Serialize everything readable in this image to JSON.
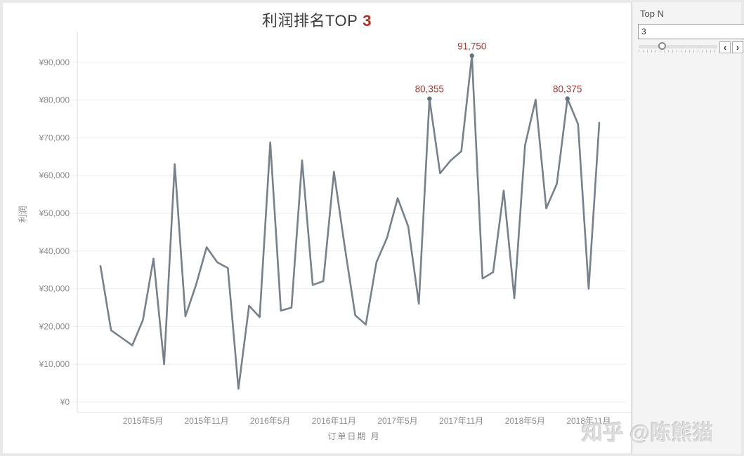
{
  "title": {
    "text": "利润排名TOP",
    "highlight": "3"
  },
  "watermark": "知乎 @陈熊猫",
  "parameter_panel": {
    "label": "Top N",
    "input_value": "3",
    "icons": {
      "chevron_left": "‹",
      "chevron_right": "›"
    }
  },
  "chart_data": {
    "type": "line",
    "title": "利润排名TOP 3",
    "xlabel": "订单日期 月",
    "ylabel": "利润",
    "grid": "horizontal",
    "legend": "none",
    "line_color": "#76818b",
    "dot_color": "#66727c",
    "annotation_color": "#9e3a37",
    "ylim": [
      0,
      95000
    ],
    "x": [
      "2015年1月",
      "2015年2月",
      "2015年3月",
      "2015年4月",
      "2015年5月",
      "2015年6月",
      "2015年7月",
      "2015年8月",
      "2015年9月",
      "2015年10月",
      "2015年11月",
      "2015年12月",
      "2016年1月",
      "2016年2月",
      "2016年3月",
      "2016年4月",
      "2016年5月",
      "2016年6月",
      "2016年7月",
      "2016年8月",
      "2016年9月",
      "2016年10月",
      "2016年11月",
      "2016年12月",
      "2017年1月",
      "2017年2月",
      "2017年3月",
      "2017年4月",
      "2017年5月",
      "2017年6月",
      "2017年7月",
      "2017年8月",
      "2017年9月",
      "2017年10月",
      "2017年11月",
      "2017年12月",
      "2018年1月",
      "2018年2月",
      "2018年3月",
      "2018年4月",
      "2018年5月",
      "2018年6月",
      "2018年7月",
      "2018年8月",
      "2018年9月",
      "2018年10月",
      "2018年11月",
      "2018年12月"
    ],
    "values": [
      36000,
      19000,
      17000,
      15000,
      21700,
      38000,
      10000,
      63000,
      22700,
      31000,
      41000,
      37000,
      35500,
      3500,
      25500,
      22500,
      68800,
      24200,
      25000,
      64000,
      31000,
      32000,
      61000,
      41500,
      23000,
      20500,
      37000,
      43500,
      54000,
      46500,
      26000,
      80355,
      60600,
      64000,
      66400,
      91750,
      32700,
      34400,
      56000,
      27500,
      68000,
      80100,
      51300,
      57800,
      80375,
      73600,
      30000,
      74000
    ],
    "x_tick_indices": [
      4,
      10,
      16,
      22,
      28,
      34,
      40,
      46
    ],
    "x_tick_labels": [
      "2015年5月",
      "2015年11月",
      "2016年5月",
      "2016年11月",
      "2017年5月",
      "2017年11月",
      "2018年5月",
      "2018年11月"
    ],
    "y_ticks": [
      0,
      10000,
      20000,
      30000,
      40000,
      50000,
      60000,
      70000,
      80000,
      90000
    ],
    "y_tick_labels": [
      "¥0",
      "¥10,000",
      "¥20,000",
      "¥30,000",
      "¥40,000",
      "¥50,000",
      "¥60,000",
      "¥70,000",
      "¥80,000",
      "¥90,000"
    ],
    "annotations": [
      {
        "index": 31,
        "label": "80,355"
      },
      {
        "index": 35,
        "label": "91,750"
      },
      {
        "index": 44,
        "label": "80,375"
      }
    ]
  }
}
